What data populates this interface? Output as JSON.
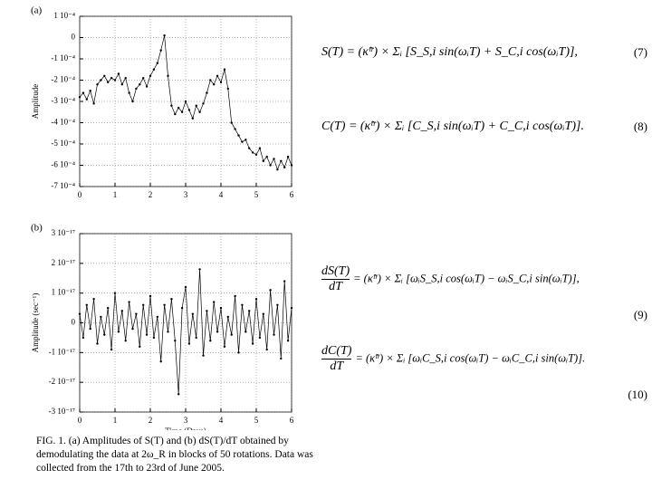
{
  "chart_data": [
    {
      "type": "line",
      "panel_label": "(a)",
      "y_label": "Amplitude",
      "color": "#000000",
      "grid": true,
      "x": [
        0,
        0.1,
        0.2,
        0.3,
        0.4,
        0.5,
        0.6,
        0.7,
        0.8,
        0.9,
        1,
        1.1,
        1.2,
        1.3,
        1.4,
        1.5,
        1.6,
        1.7,
        1.8,
        1.9,
        2,
        2.1,
        2.2,
        2.3,
        2.4,
        2.5,
        2.6,
        2.7,
        2.8,
        2.9,
        3,
        3.1,
        3.2,
        3.3,
        3.4,
        3.5,
        3.6,
        3.7,
        3.8,
        3.9,
        4,
        4.1,
        4.2,
        4.3,
        4.4,
        4.5,
        4.6,
        4.7,
        4.8,
        4.9,
        5,
        5.1,
        5.2,
        5.3,
        5.4,
        5.5,
        5.6,
        5.7,
        5.8,
        5.9,
        6
      ],
      "values": [
        -0.00028,
        -0.00026,
        -0.00029,
        -0.00025,
        -0.00031,
        -0.00022,
        -0.0002,
        -0.00018,
        -0.00021,
        -0.00019,
        -0.0002,
        -0.00017,
        -0.00022,
        -0.00019,
        -0.00026,
        -0.0003,
        -0.00024,
        -0.00022,
        -0.00019,
        -0.00023,
        -0.00018,
        -0.00015,
        -0.00012,
        -6e-05,
        1e-05,
        -0.00018,
        -0.00032,
        -0.00036,
        -0.00033,
        -0.00035,
        -0.0003,
        -0.00034,
        -0.00038,
        -0.00032,
        -0.00035,
        -0.00031,
        -0.00026,
        -0.0002,
        -0.00022,
        -0.00018,
        -0.00021,
        -0.00015,
        -0.00024,
        -0.0004,
        -0.00043,
        -0.00046,
        -0.00049,
        -0.00048,
        -0.00052,
        -0.00054,
        -0.00055,
        -0.00052,
        -0.00058,
        -0.00056,
        -0.0006,
        -0.00057,
        -0.00062,
        -0.00058,
        -0.00061,
        -0.00056,
        -0.0006
      ],
      "xlim": [
        0,
        6
      ],
      "xticks": [
        0,
        1,
        2,
        3,
        4,
        5,
        6
      ],
      "ylim": [
        -0.0007,
        0.0001
      ],
      "yticks": [
        {
          "value": -0.0007,
          "label": "-7 10⁻⁴"
        },
        {
          "value": -0.0006,
          "label": "-6 10⁻⁴"
        },
        {
          "value": -0.0005,
          "label": "-5 10⁻⁴"
        },
        {
          "value": -0.0004,
          "label": "-4 10⁻⁴"
        },
        {
          "value": -0.0003,
          "label": "-3 10⁻⁴"
        },
        {
          "value": -0.0002,
          "label": "-2 10⁻⁴"
        },
        {
          "value": -0.0001,
          "label": "-1 10⁻⁴"
        },
        0,
        {
          "value": 0.0001,
          "label": "1 10⁻⁴"
        }
      ]
    },
    {
      "type": "line",
      "panel_label": "(b)",
      "y_label": "Amplitude (sec⁻¹)",
      "x_label": "Time (Days)",
      "color": "#000000",
      "grid": true,
      "x": [
        0,
        0.1,
        0.2,
        0.3,
        0.4,
        0.5,
        0.6,
        0.7,
        0.8,
        0.9,
        1,
        1.1,
        1.2,
        1.3,
        1.4,
        1.5,
        1.6,
        1.7,
        1.8,
        1.9,
        2,
        2.1,
        2.2,
        2.3,
        2.4,
        2.5,
        2.6,
        2.7,
        2.8,
        2.9,
        3,
        3.1,
        3.2,
        3.3,
        3.4,
        3.5,
        3.6,
        3.7,
        3.8,
        3.9,
        4,
        4.1,
        4.2,
        4.3,
        4.4,
        4.5,
        4.6,
        4.7,
        4.8,
        4.9,
        5,
        5.1,
        5.2,
        5.3,
        5.4,
        5.5,
        5.6,
        5.7,
        5.8,
        5.9,
        6
      ],
      "values": [
        3e-18,
        -5e-18,
        6e-18,
        -2e-18,
        8e-18,
        -7e-18,
        2e-18,
        -4e-18,
        5e-18,
        -9e-18,
        1e-17,
        -3e-18,
        4e-18,
        -6e-18,
        7e-18,
        -2e-18,
        3e-18,
        -8e-18,
        6e-18,
        -4e-18,
        9e-18,
        -5e-18,
        2e-18,
        -1.3e-17,
        6e-18,
        -3e-18,
        8e-18,
        -6e-18,
        -2.4e-17,
        5e-18,
        1.2e-17,
        -7e-18,
        3e-18,
        -5e-18,
        1.8e-17,
        -1.1e-17,
        4e-18,
        -6e-18,
        7e-18,
        -3e-18,
        5e-18,
        -8e-18,
        2e-18,
        -4e-18,
        9e-18,
        -1e-17,
        6e-18,
        -3e-18,
        4e-18,
        -7e-18,
        8e-18,
        -5e-18,
        3e-18,
        -9e-18,
        1.1e-17,
        -4e-18,
        6e-18,
        -1.2e-17,
        1.4e-17,
        -6e-18,
        5e-18
      ],
      "xlim": [
        0,
        6
      ],
      "xticks": [
        0,
        1,
        2,
        3,
        4,
        5,
        6
      ],
      "ylim": [
        -3e-17,
        3e-17
      ],
      "yticks": [
        {
          "value": -3e-17,
          "label": "-3 10⁻¹⁷"
        },
        {
          "value": -2e-17,
          "label": "-2 10⁻¹⁷"
        },
        {
          "value": -1e-17,
          "label": "-1 10⁻¹⁷"
        },
        0,
        {
          "value": 1e-17,
          "label": "1 10⁻¹⁷"
        },
        {
          "value": 2e-17,
          "label": "2 10⁻¹⁷"
        },
        {
          "value": 3e-17,
          "label": "3 10⁻¹⁷"
        }
      ]
    }
  ],
  "equations": [
    {
      "lhs": "S(T) = (κ̃ᵗʳ) × Σᵢ",
      "rhs": "[S_S,i sin(ωᵢT) + S_C,i cos(ωᵢT)],",
      "number": "(7)"
    },
    {
      "lhs": "C(T) = (κ̃ᵗʳ) × Σᵢ",
      "rhs": "[C_S,i sin(ωᵢT) + C_C,i cos(ωᵢT)].",
      "number": "(8)"
    },
    {
      "num": "dS(T)",
      "den": "dT",
      "rhs": "= (κ̃ᵗʳ) × Σᵢ [ωᵢS_S,i cos(ωᵢT) − ωᵢS_C,i sin(ωᵢT)],",
      "number": "(9)"
    },
    {
      "num": "dC(T)",
      "den": "dT",
      "rhs": "= (κ̃ᵗʳ) × Σᵢ [ωᵢC_S,i cos(ωᵢT) − ωᵢC_C,i sin(ωᵢT)].",
      "number": "(10)"
    }
  ],
  "caption": "FIG. 1.  (a) Amplitudes of S(T) and (b) dS(T)/dT obtained by demodulating the data at 2ω_R in blocks of 50 rotations. Data was collected from the 17th to 23rd of June 2005."
}
